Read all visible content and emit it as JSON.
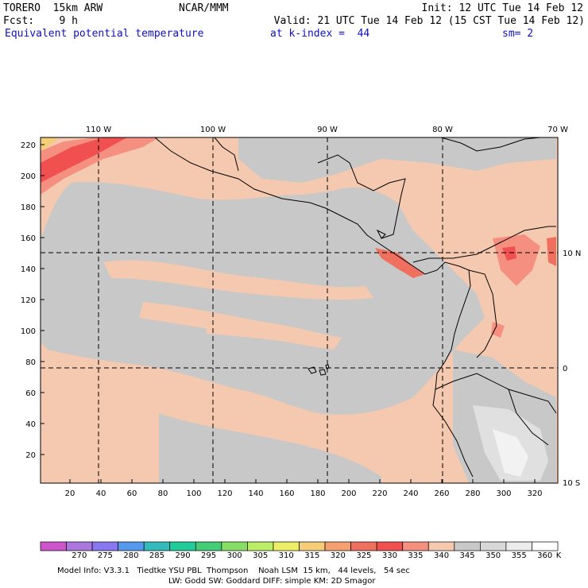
{
  "header": {
    "model": "TORERO  15km ARW",
    "center": "NCAR/MMM",
    "init": "Init: 12 UTC Tue 14 Feb 12",
    "fcst": "Fcst:    9 h",
    "valid": "Valid: 21 UTC Tue 14 Feb 12 (15 CST Tue 14 Feb 12)",
    "field": "Equivalent potential temperature",
    "level": "at k-index =  44",
    "smooth": "sm= 2"
  },
  "axes": {
    "x_ticks": [
      "20",
      "40",
      "60",
      "80",
      "100",
      "120",
      "140",
      "160",
      "180",
      "200",
      "220",
      "240",
      "260",
      "280",
      "300",
      "320"
    ],
    "y_ticks": [
      "20",
      "40",
      "60",
      "80",
      "100",
      "120",
      "140",
      "160",
      "180",
      "200",
      "220"
    ],
    "lon_labels": [
      "110 W",
      "100 W",
      "90 W",
      "80 W",
      "70 W"
    ],
    "lat_labels": [
      "10 N",
      "0",
      "10 S"
    ]
  },
  "colorbar": {
    "levels": [
      "270",
      "275",
      "280",
      "285",
      "290",
      "295",
      "300",
      "305",
      "310",
      "315",
      "320",
      "325",
      "330",
      "335",
      "340",
      "345",
      "350",
      "355",
      "360"
    ],
    "unit": "K",
    "colors": [
      "#cc55cc",
      "#aa77dd",
      "#8877ee",
      "#5599ee",
      "#33bbbb",
      "#22cc99",
      "#44cc77",
      "#88dd66",
      "#bbee66",
      "#eeee66",
      "#f5cc77",
      "#f5a070",
      "#f07060",
      "#f05050",
      "#f59080",
      "#f5c8b0",
      "#c8c8c8",
      "#d8d8d8",
      "#ececec",
      "#ffffff"
    ]
  },
  "footer": {
    "line1": "Model Info: V3.3.1   Tiedtke YSU PBL  Thompson    Noah LSM  15 km,   44 levels,   54 sec",
    "line2": "LW: Godd SW: Goddard DIFF: simple KM: 2D Smagor"
  }
}
